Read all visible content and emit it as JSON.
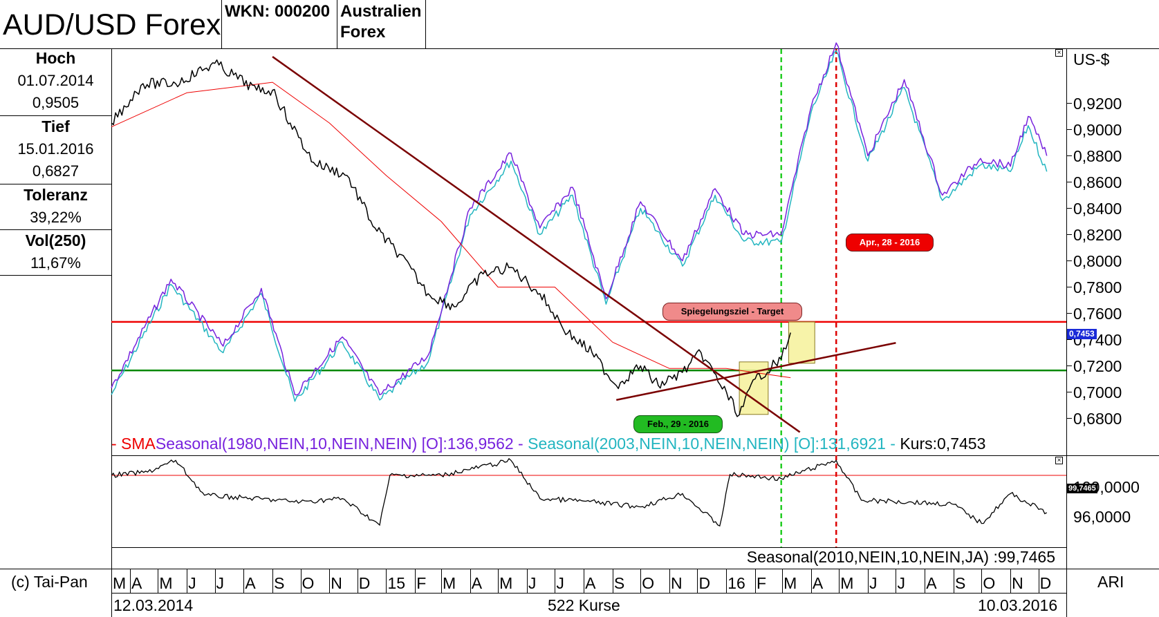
{
  "header": {
    "title": "AUD/USD Forex",
    "wkn": "WKN: 000200",
    "name_line1": "Australien",
    "name_line2": "Forex"
  },
  "stats": {
    "high_label": "Hoch",
    "high_date": "01.07.2014",
    "high_value": "0,9505",
    "low_label": "Tief",
    "low_date": "15.01.2016",
    "low_value": "0,6827",
    "tolerance_label": "Toleranz",
    "tolerance_value": "39,22%",
    "vol_label": "Vol(250)",
    "vol_value": "11,67%"
  },
  "main_chart": {
    "unit_label": "US-$",
    "y_ticks": [
      "0,9200",
      "0,9000",
      "0,8800",
      "0,8600",
      "0,8400",
      "0,8200",
      "0,8000",
      "0,7800",
      "0,7600",
      "0,7400",
      "0,7200",
      "0,7000",
      "0,6800"
    ],
    "last_price_tag": "0,7453",
    "annotations": {
      "target": "Spiegelungsziel - Target",
      "green_date": "Feb., 29 - 2016",
      "red_date": "Apr., 28 - 2016"
    },
    "legend": {
      "sma": "- SMA",
      "seasonal_1980": "Seasonal(1980,NEIN,10,NEIN,NEIN) [O]:136,9562 -",
      "seasonal_2003": "Seasonal(2003,NEIN,10,NEIN,NEIN) [O]:131,6921 -",
      "kurs": "Kurs:0,7453"
    }
  },
  "sub_chart": {
    "y_ticks": [
      "100,0000",
      "96,0000"
    ],
    "last_tag": "99,7465",
    "legend": "Seasonal(2010,NEIN,10,NEIN,JA) :99,7465"
  },
  "x_axis": {
    "labels": [
      "M",
      "A",
      "M",
      "J",
      "J",
      "A",
      "S",
      "O",
      "N",
      "D",
      "15",
      "F",
      "M",
      "A",
      "M",
      "J",
      "J",
      "A",
      "S",
      "O",
      "N",
      "D",
      "16",
      "F",
      "M",
      "A",
      "M",
      "J",
      "J",
      "A",
      "S",
      "O",
      "N",
      "D"
    ],
    "copyright": "(c) Tai-Pan",
    "right_label": "ARI",
    "start_date": "12.03.2014",
    "count": "522 Kurse",
    "end_date": "10.03.2016"
  },
  "chart_data": {
    "type": "line",
    "title": "AUD/USD Forex",
    "ylabel": "US-$",
    "ylim": [
      0.665,
      0.965
    ],
    "x_range": [
      "2014-03-12",
      "2016-12-31"
    ],
    "series": [
      {
        "name": "Kurs",
        "color": "#000000",
        "x": [
          "2014-03-12",
          "2014-04-15",
          "2014-05-20",
          "2014-07-01",
          "2014-08-15",
          "2014-09-01",
          "2014-09-20",
          "2014-10-15",
          "2014-11-20",
          "2014-12-20",
          "2015-01-15",
          "2015-02-15",
          "2015-03-15",
          "2015-04-15",
          "2015-05-15",
          "2015-06-15",
          "2015-07-15",
          "2015-08-10",
          "2015-09-05",
          "2015-10-01",
          "2015-10-20",
          "2015-11-15",
          "2015-12-05",
          "2016-01-15",
          "2016-02-01",
          "2016-02-29",
          "2016-03-10"
        ],
        "values": [
          0.905,
          0.935,
          0.935,
          0.9505,
          0.93,
          0.93,
          0.905,
          0.875,
          0.865,
          0.825,
          0.805,
          0.775,
          0.765,
          0.79,
          0.795,
          0.775,
          0.745,
          0.73,
          0.705,
          0.72,
          0.705,
          0.715,
          0.73,
          0.6827,
          0.71,
          0.725,
          0.7453
        ]
      },
      {
        "name": "SMA",
        "color": "#ee0000",
        "x": [
          "2014-03-12",
          "2014-06-01",
          "2014-09-01",
          "2014-11-01",
          "2015-01-01",
          "2015-03-01",
          "2015-05-01",
          "2015-07-01",
          "2015-09-01",
          "2015-11-01",
          "2016-01-01",
          "2016-03-10"
        ],
        "values": [
          0.902,
          0.928,
          0.936,
          0.905,
          0.865,
          0.83,
          0.78,
          0.78,
          0.738,
          0.718,
          0.718,
          0.711
        ]
      },
      {
        "name": "Seasonal(1980,NEIN,10,NEIN,NEIN)",
        "color": "#7722dd",
        "x": [
          "2014-03-12",
          "2014-05-15",
          "2014-07-10",
          "2014-08-20",
          "2014-09-25",
          "2014-11-15",
          "2014-12-25",
          "2015-02-15",
          "2015-04-01",
          "2015-05-15",
          "2015-06-15",
          "2015-07-20",
          "2015-08-25",
          "2015-10-01",
          "2015-11-15",
          "2015-12-20",
          "2016-01-20",
          "2016-02-29",
          "2016-04-01",
          "2016-04-28",
          "2016-06-01",
          "2016-07-10",
          "2016-08-20",
          "2016-09-30",
          "2016-11-01",
          "2016-11-20",
          "2016-12-10"
        ],
        "values": [
          0.703,
          0.786,
          0.735,
          0.779,
          0.698,
          0.742,
          0.698,
          0.728,
          0.84,
          0.882,
          0.825,
          0.856,
          0.771,
          0.845,
          0.8,
          0.855,
          0.82,
          0.82,
          0.917,
          0.966,
          0.88,
          0.938,
          0.85,
          0.878,
          0.872,
          0.91,
          0.88
        ]
      },
      {
        "name": "Seasonal(2003,NEIN,10,NEIN,NEIN)",
        "color": "#22b5c0",
        "x": [
          "2014-03-12",
          "2014-05-15",
          "2014-07-10",
          "2014-08-20",
          "2014-09-25",
          "2014-11-15",
          "2014-12-25",
          "2015-02-15",
          "2015-04-01",
          "2015-05-15",
          "2015-06-15",
          "2015-07-20",
          "2015-08-25",
          "2015-10-01",
          "2015-11-15",
          "2015-12-20",
          "2016-01-20",
          "2016-02-29",
          "2016-04-01",
          "2016-04-28",
          "2016-06-01",
          "2016-07-10",
          "2016-08-20",
          "2016-09-30",
          "2016-11-01",
          "2016-11-20",
          "2016-12-10"
        ],
        "values": [
          0.698,
          0.782,
          0.73,
          0.775,
          0.693,
          0.738,
          0.694,
          0.723,
          0.835,
          0.876,
          0.82,
          0.85,
          0.767,
          0.84,
          0.796,
          0.85,
          0.815,
          0.814,
          0.913,
          0.96,
          0.876,
          0.932,
          0.846,
          0.873,
          0.868,
          0.903,
          0.868
        ]
      }
    ],
    "horizontal_lines": [
      {
        "name": "target",
        "value": 0.7535,
        "color": "#ee0000"
      },
      {
        "name": "support",
        "value": 0.7165,
        "color": "#008800"
      }
    ],
    "vertical_lines": [
      {
        "date": "2016-02-29",
        "color": "#22cc22"
      },
      {
        "date": "2016-04-28",
        "color": "#dd0000"
      }
    ],
    "trend_lines": [
      {
        "from": [
          "2014-09-01",
          0.9555
        ],
        "to": [
          "2016-03-20",
          0.6695
        ],
        "color": "#7a0000"
      },
      {
        "from": [
          "2015-09-05",
          0.694
        ],
        "to": [
          "2016-07-01",
          0.7375
        ],
        "color": "#7a0000"
      }
    ],
    "highlight_boxes": [
      {
        "from": [
          "2016-01-15",
          0.683
        ],
        "to": [
          "2016-02-15",
          0.723
        ]
      },
      {
        "from": [
          "2016-03-08",
          0.722
        ],
        "to": [
          "2016-04-05",
          0.7535
        ]
      }
    ],
    "sub_chart": {
      "name": "Seasonal(2010,NEIN,10,NEIN,JA)",
      "ylim": [
        92.0,
        102.0
      ],
      "reference_line": 100.0,
      "x": [
        "2014-03-12",
        "2014-04-20",
        "2014-05-20",
        "2014-06-20",
        "2014-08-01",
        "2014-10-01",
        "2014-11-15",
        "2014-12-25",
        "2015-01-05",
        "2015-03-01",
        "2015-05-15",
        "2015-06-15",
        "2015-08-01",
        "2015-10-01",
        "2015-11-15",
        "2015-12-25",
        "2016-01-05",
        "2016-02-29",
        "2016-04-28",
        "2016-05-25",
        "2016-07-15",
        "2016-09-01",
        "2016-10-01",
        "2016-11-01",
        "2016-12-10"
      ],
      "values": [
        100.0,
        100.4,
        101.8,
        97.6,
        97.3,
        96.8,
        97.2,
        94.0,
        100.0,
        100.0,
        101.8,
        97.2,
        96.9,
        96.2,
        97.8,
        93.9,
        100.1,
        99.6,
        101.8,
        97.0,
        96.8,
        96.5,
        94.2,
        97.8,
        95.5
      ]
    }
  }
}
